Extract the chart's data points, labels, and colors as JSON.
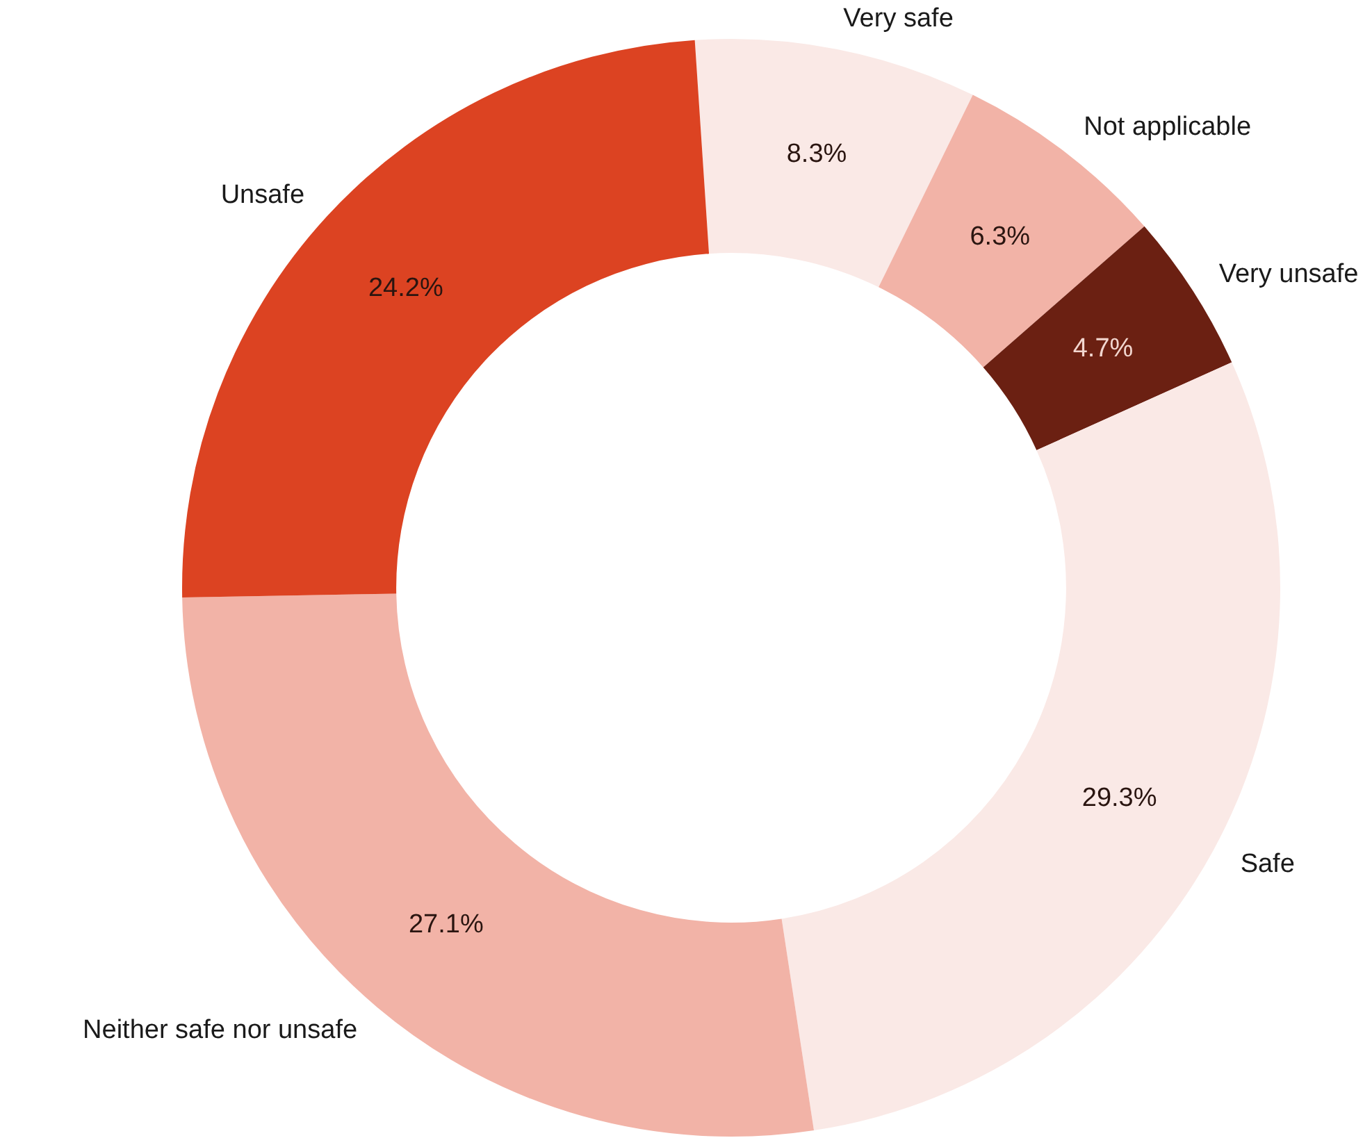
{
  "chart_data": {
    "type": "donut",
    "categories": [
      "Very safe",
      "Not applicable",
      "Very unsafe",
      "Safe",
      "Neither safe nor unsafe",
      "Unsafe"
    ],
    "values": [
      8.3,
      6.3,
      4.7,
      29.3,
      27.1,
      24.2
    ],
    "colors": [
      "#fae9e6",
      "#f2b3a7",
      "#6b2012",
      "#fae9e6",
      "#f2b3a7",
      "#dc4322"
    ],
    "value_labels": [
      "8.3%",
      "6.3%",
      "4.7%",
      "29.3%",
      "27.1%",
      "24.2%"
    ],
    "legend": false
  }
}
